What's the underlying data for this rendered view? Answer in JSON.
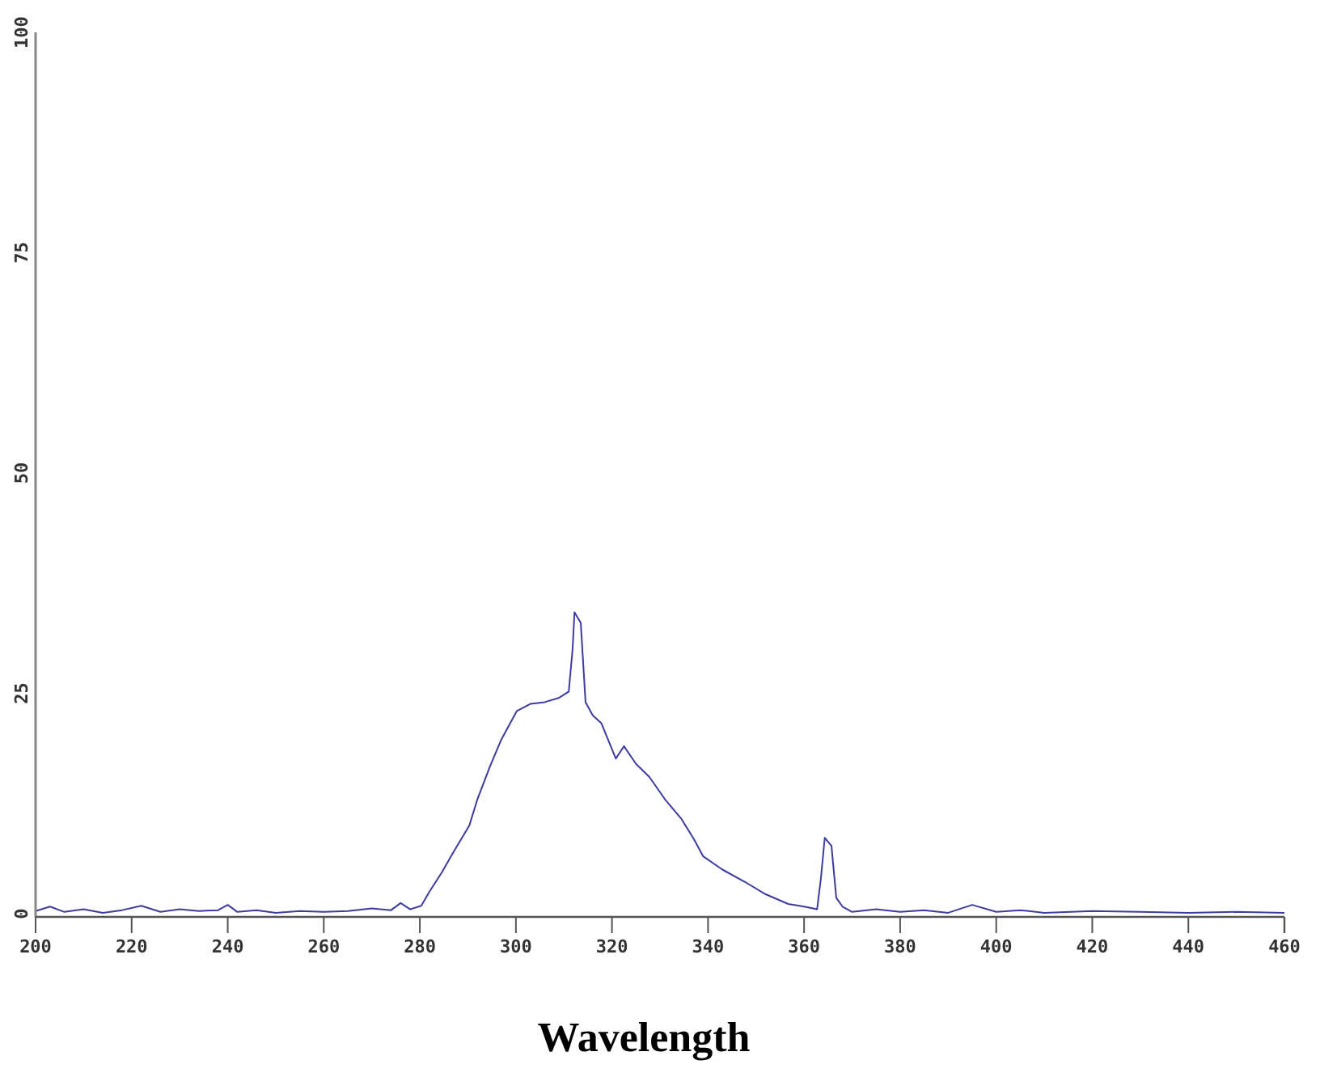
{
  "chart_data": {
    "type": "line",
    "xlabel": "Wavelength",
    "xlim": [
      200,
      460
    ],
    "ylim": [
      0,
      100
    ],
    "xticks": [
      200,
      220,
      240,
      260,
      280,
      300,
      320,
      340,
      360,
      380,
      400,
      420,
      440,
      460
    ],
    "yticks": [
      0,
      25,
      50,
      75,
      100
    ],
    "grid": false,
    "marker": "none",
    "line_style": "solid",
    "series": [
      {
        "color": "#3c3ca0",
        "x": [
          200,
          203,
          206,
          210,
          214,
          218,
          222,
          226,
          230,
          234,
          238,
          240,
          242,
          246,
          250,
          255,
          260,
          265,
          270,
          274,
          276,
          278,
          280.3,
          282,
          284.6,
          287,
          290.3,
          292,
          294.6,
          297,
          300.2,
          303,
          306,
          309,
          311,
          311.8,
          312.2,
          313.5,
          314.5,
          316,
          317.8,
          320.8,
          322.5,
          325,
          327.8,
          331,
          334.4,
          337,
          339,
          343,
          347.7,
          352,
          356.7,
          360,
          362.7,
          363.5,
          364.3,
          365.7,
          366.7,
          368,
          370,
          375,
          380,
          385,
          390,
          395,
          400,
          405,
          410,
          420,
          430,
          440,
          450,
          460
        ],
        "values": [
          0.3,
          0.8,
          0.2,
          0.5,
          0.1,
          0.4,
          0.9,
          0.2,
          0.5,
          0.3,
          0.4,
          1,
          0.2,
          0.4,
          0.1,
          0.3,
          0.2,
          0.3,
          0.6,
          0.4,
          1.2,
          0.5,
          0.9,
          2.5,
          4.7,
          7,
          10,
          13,
          16.7,
          19.8,
          23,
          23.8,
          24,
          24.5,
          25.2,
          30,
          34.2,
          33,
          24,
          22.5,
          21.6,
          17.6,
          19,
          17,
          15.5,
          13,
          10.8,
          8.5,
          6.5,
          5,
          3.6,
          2.2,
          1.1,
          0.8,
          0.5,
          4,
          8.6,
          7.7,
          1.8,
          0.8,
          0.2,
          0.5,
          0.2,
          0.4,
          0.1,
          1,
          0.2,
          0.4,
          0.1,
          0.3,
          0.2,
          0.1,
          0.2,
          0.1
        ]
      }
    ]
  }
}
